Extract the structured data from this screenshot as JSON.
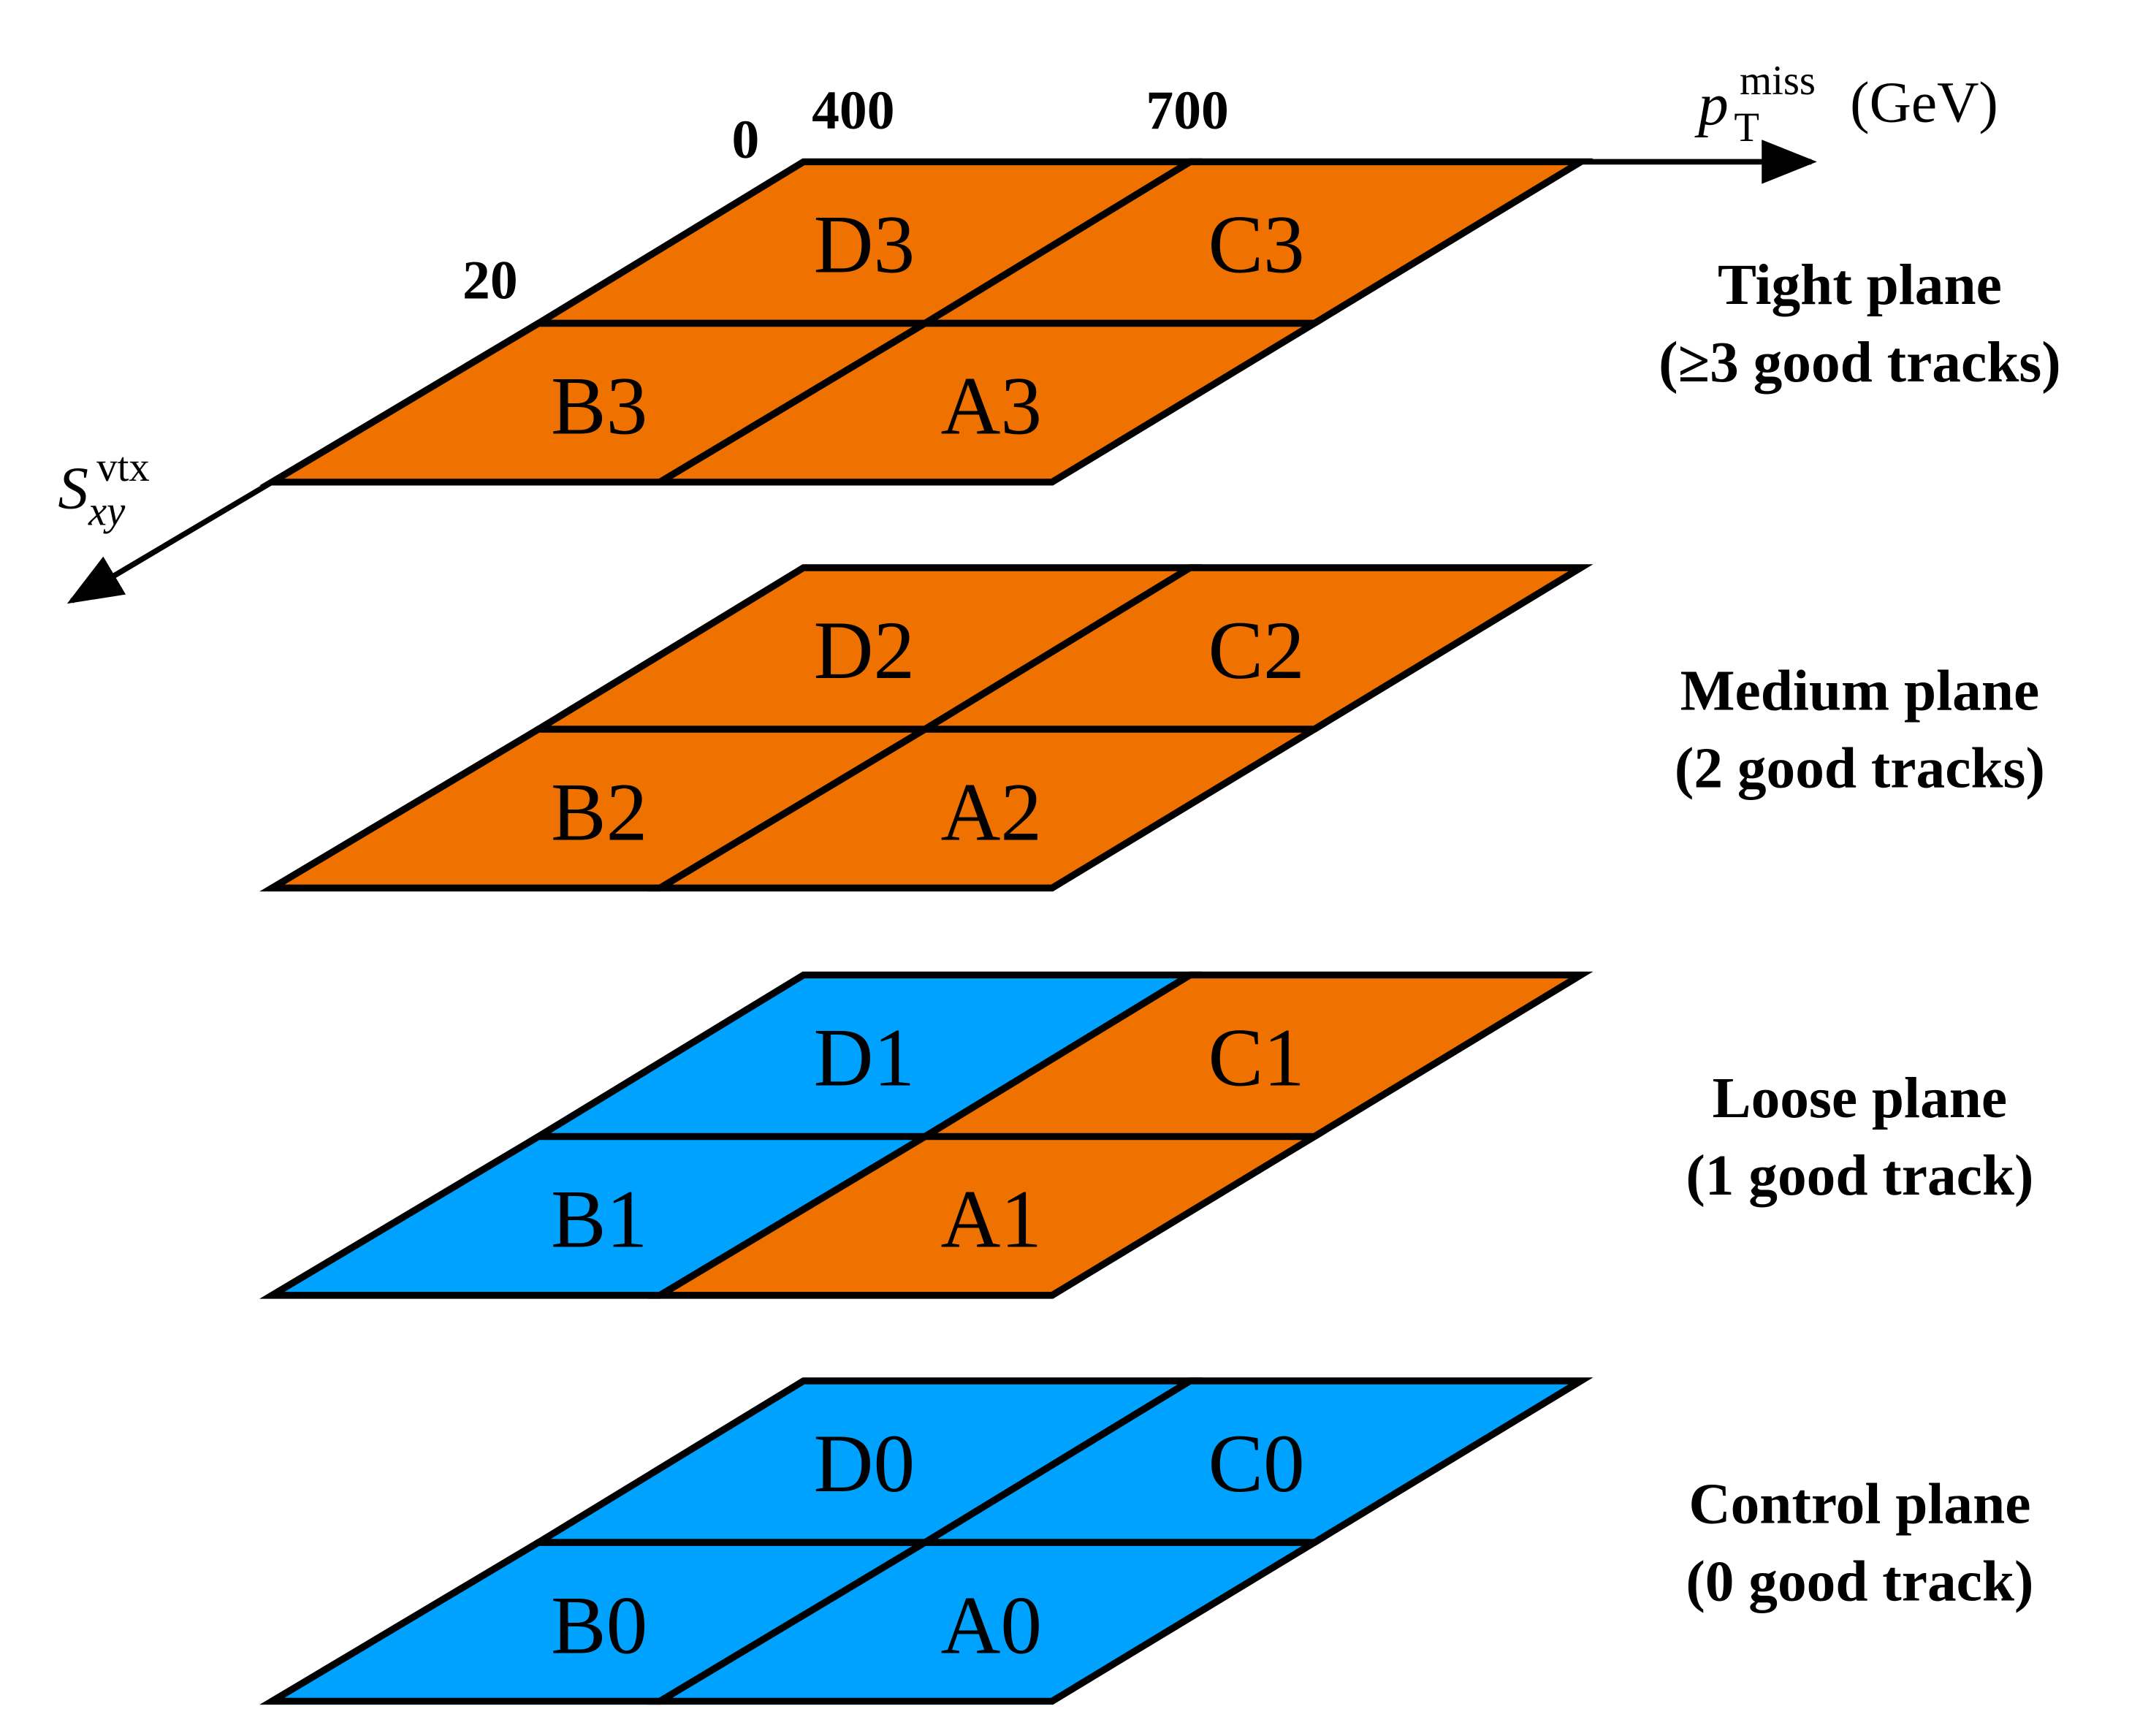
{
  "colors": {
    "orange": "#EF7100",
    "blue": "#00A2FF",
    "outline": "#000000"
  },
  "axes": {
    "x": {
      "symbol": "p",
      "subscript": "T",
      "superscript": "miss",
      "unit": "(GeV)",
      "ticks": [
        "400",
        "700"
      ]
    },
    "y": {
      "symbol": "S",
      "subscript": "xy",
      "superscript": "vtx",
      "ticks": [
        "0",
        "20"
      ]
    }
  },
  "planes": [
    {
      "title": "Tight plane",
      "subtitle": "(≥3 good tracks)",
      "cells": {
        "D": {
          "label": "D3",
          "color": "orange"
        },
        "C": {
          "label": "C3",
          "color": "orange"
        },
        "B": {
          "label": "B3",
          "color": "orange"
        },
        "A": {
          "label": "A3",
          "color": "orange"
        }
      }
    },
    {
      "title": "Medium plane",
      "subtitle": "(2 good tracks)",
      "cells": {
        "D": {
          "label": "D2",
          "color": "orange"
        },
        "C": {
          "label": "C2",
          "color": "orange"
        },
        "B": {
          "label": "B2",
          "color": "orange"
        },
        "A": {
          "label": "A2",
          "color": "orange"
        }
      }
    },
    {
      "title": "Loose plane",
      "subtitle": "(1 good track)",
      "cells": {
        "D": {
          "label": "D1",
          "color": "blue"
        },
        "C": {
          "label": "C1",
          "color": "orange"
        },
        "B": {
          "label": "B1",
          "color": "blue"
        },
        "A": {
          "label": "A1",
          "color": "orange"
        }
      }
    },
    {
      "title": "Control plane",
      "subtitle": "(0 good track)",
      "cells": {
        "D": {
          "label": "D0",
          "color": "blue"
        },
        "C": {
          "label": "C0",
          "color": "blue"
        },
        "B": {
          "label": "B0",
          "color": "blue"
        },
        "A": {
          "label": "A0",
          "color": "blue"
        }
      }
    }
  ]
}
